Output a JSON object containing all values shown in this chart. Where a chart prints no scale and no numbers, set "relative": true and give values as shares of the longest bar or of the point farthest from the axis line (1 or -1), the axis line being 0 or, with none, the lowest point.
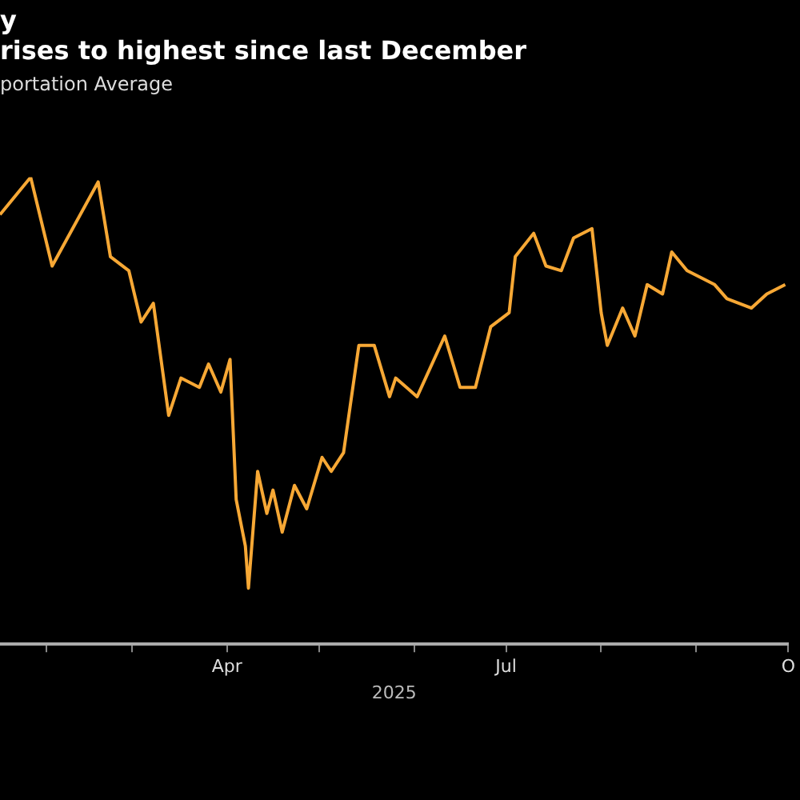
{
  "chart_data": {
    "type": "line",
    "title": "y\nrises to highest since last December",
    "subtitle": "portation Average",
    "xlabel": "2025",
    "relative": true,
    "legend": false,
    "marker": "none",
    "line_style": "solid",
    "xlim": [
      "2025-01-17",
      "2025-10-01"
    ],
    "xticks": [
      {
        "value": "2025-02-01",
        "label": null
      },
      {
        "value": "2025-03-01",
        "label": null
      },
      {
        "value": "2025-04-01",
        "label": "Apr"
      },
      {
        "value": "2025-05-01",
        "label": null
      },
      {
        "value": "2025-06-01",
        "label": null
      },
      {
        "value": "2025-07-01",
        "label": "Jul"
      },
      {
        "value": "2025-08-01",
        "label": null
      },
      {
        "value": "2025-09-01",
        "label": null
      },
      {
        "value": "2025-10-01",
        "label": "O"
      }
    ],
    "x": [
      "2025-01-17",
      "2025-01-27",
      "2025-02-03",
      "2025-02-18",
      "2025-02-22",
      "2025-02-28",
      "2025-03-04",
      "2025-03-08",
      "2025-03-13",
      "2025-03-17",
      "2025-03-23",
      "2025-03-26",
      "2025-03-30",
      "2025-04-02",
      "2025-04-04",
      "2025-04-07",
      "2025-04-08",
      "2025-04-11",
      "2025-04-14",
      "2025-04-16",
      "2025-04-19",
      "2025-04-23",
      "2025-04-27",
      "2025-05-02",
      "2025-05-05",
      "2025-05-09",
      "2025-05-14",
      "2025-05-19",
      "2025-05-24",
      "2025-05-26",
      "2025-06-02",
      "2025-06-11",
      "2025-06-16",
      "2025-06-21",
      "2025-06-26",
      "2025-07-02",
      "2025-07-04",
      "2025-07-10",
      "2025-07-14",
      "2025-07-19",
      "2025-07-23",
      "2025-07-29",
      "2025-08-01",
      "2025-08-03",
      "2025-08-08",
      "2025-08-12",
      "2025-08-16",
      "2025-08-21",
      "2025-08-24",
      "2025-08-29",
      "2025-09-07",
      "2025-09-11",
      "2025-09-19",
      "2025-09-24",
      "2025-09-30"
    ],
    "series": [
      {
        "color": "#f7a835",
        "values": [
          0.92,
          1,
          0.81,
          0.99,
          0.83,
          0.8,
          0.69,
          0.73,
          0.49,
          0.57,
          0.55,
          0.6,
          0.54,
          0.61,
          0.31,
          0.21,
          0.12,
          0.37,
          0.28,
          0.33,
          0.24,
          0.34,
          0.29,
          0.4,
          0.37,
          0.41,
          0.64,
          0.64,
          0.53,
          0.57,
          0.53,
          0.66,
          0.55,
          0.55,
          0.68,
          0.71,
          0.83,
          0.88,
          0.81,
          0.8,
          0.87,
          0.89,
          0.71,
          0.64,
          0.72,
          0.66,
          0.77,
          0.75,
          0.84,
          0.8,
          0.77,
          0.74,
          0.72,
          0.75,
          0.77
        ]
      }
    ]
  }
}
